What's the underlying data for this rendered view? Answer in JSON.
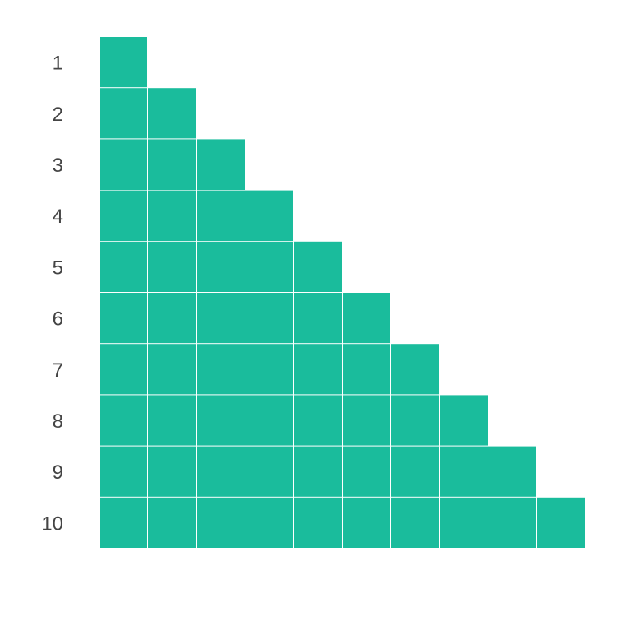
{
  "chart_data": {
    "type": "heatmap",
    "title": "",
    "xlabel": "",
    "ylabel": "",
    "rows": [
      "1",
      "2",
      "3",
      "4",
      "5",
      "6",
      "7",
      "8",
      "9",
      "10"
    ],
    "cells_per_row": [
      1,
      2,
      3,
      4,
      5,
      6,
      7,
      8,
      9,
      10
    ],
    "cell_color": "#1abc9c",
    "background_color": "#ffffff",
    "label_color": "#444444",
    "grid": false
  }
}
